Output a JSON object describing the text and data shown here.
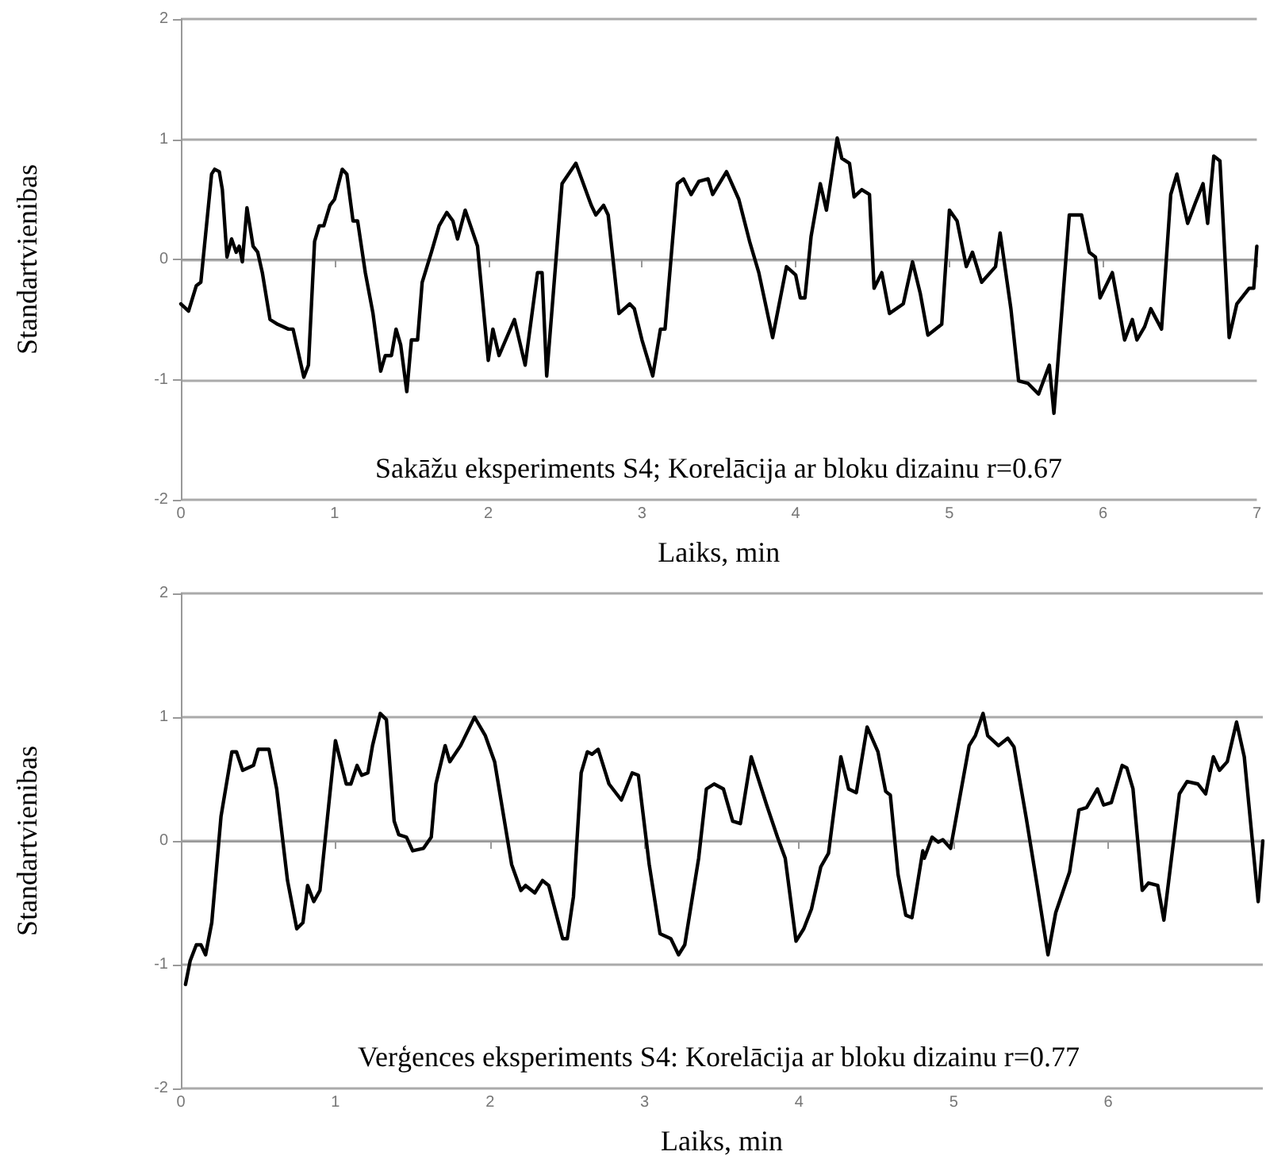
{
  "chart_data": [
    {
      "type": "line",
      "xlabel": "Laiks, min",
      "ylabel": "Standartvienibas",
      "annotations": [
        "Sakāžu eksperiments S4; Korelācija ar bloku dizainu r=0.67"
      ],
      "xlim": [
        0,
        7
      ],
      "xticks": [
        0,
        1,
        2,
        3,
        4,
        5,
        6,
        7
      ],
      "ylim": [
        -2,
        2
      ],
      "yticks": [
        -2,
        -1,
        0,
        1,
        2
      ],
      "grid": "y",
      "line_style": "solid",
      "color": "#000000",
      "x": [
        0,
        0.05,
        0.1,
        0.13,
        0.2,
        0.22,
        0.25,
        0.27,
        0.3,
        0.33,
        0.36,
        0.38,
        0.4,
        0.43,
        0.47,
        0.5,
        0.53,
        0.58,
        0.63,
        0.7,
        0.73,
        0.8,
        0.83,
        0.87,
        0.9,
        0.93,
        0.97,
        1.0,
        1.05,
        1.08,
        1.12,
        1.15,
        1.2,
        1.25,
        1.3,
        1.33,
        1.37,
        1.4,
        1.43,
        1.47,
        1.5,
        1.54,
        1.57,
        1.63,
        1.68,
        1.73,
        1.77,
        1.8,
        1.85,
        1.93,
        2.0,
        2.03,
        2.07,
        2.17,
        2.24,
        2.32,
        2.35,
        2.38,
        2.48,
        2.57,
        2.67,
        2.7,
        2.75,
        2.78,
        2.85,
        2.92,
        2.95,
        3.0,
        3.07,
        3.12,
        3.15,
        3.23,
        3.27,
        3.32,
        3.37,
        3.43,
        3.46,
        3.55,
        3.63,
        3.7,
        3.76,
        3.85,
        3.94,
        4.0,
        4.03,
        4.06,
        4.1,
        4.16,
        4.2,
        4.27,
        4.3,
        4.35,
        4.38,
        4.43,
        4.48,
        4.51,
        4.56,
        4.61,
        4.7,
        4.76,
        4.81,
        4.86,
        4.95,
        5.0,
        5.05,
        5.11,
        5.15,
        5.21,
        5.3,
        5.33,
        5.4,
        5.45,
        5.51,
        5.58,
        5.65,
        5.68,
        5.78,
        5.86,
        5.91,
        5.95,
        5.98,
        6.06,
        6.14,
        6.19,
        6.22,
        6.27,
        6.31,
        6.38,
        6.44,
        6.48,
        6.55,
        6.6,
        6.65,
        6.68,
        6.72,
        6.76,
        6.82,
        6.87,
        6.95,
        6.98,
        7.0
      ],
      "values": [
        -0.37,
        -0.43,
        -0.22,
        -0.19,
        0.71,
        0.75,
        0.73,
        0.58,
        0.02,
        0.17,
        0.06,
        0.11,
        -0.02,
        0.43,
        0.11,
        0.06,
        -0.11,
        -0.5,
        -0.54,
        -0.58,
        -0.58,
        -0.98,
        -0.88,
        0.15,
        0.28,
        0.28,
        0.45,
        0.5,
        0.75,
        0.71,
        0.32,
        0.32,
        -0.11,
        -0.45,
        -0.93,
        -0.8,
        -0.8,
        -0.58,
        -0.71,
        -1.1,
        -0.67,
        -0.67,
        -0.19,
        0.06,
        0.28,
        0.39,
        0.32,
        0.17,
        0.41,
        0.11,
        -0.84,
        -0.58,
        -0.8,
        -0.5,
        -0.88,
        -0.11,
        -0.11,
        -0.97,
        0.63,
        0.8,
        0.45,
        0.37,
        0.45,
        0.37,
        -0.45,
        -0.37,
        -0.41,
        -0.67,
        -0.97,
        -0.58,
        -0.58,
        0.63,
        0.67,
        0.54,
        0.65,
        0.67,
        0.54,
        0.73,
        0.5,
        0.15,
        -0.11,
        -0.65,
        -0.06,
        -0.13,
        -0.32,
        -0.32,
        0.19,
        0.63,
        0.41,
        1.01,
        0.84,
        0.8,
        0.52,
        0.58,
        0.54,
        -0.24,
        -0.11,
        -0.45,
        -0.37,
        -0.02,
        -0.28,
        -0.63,
        -0.54,
        0.41,
        0.32,
        -0.06,
        0.06,
        -0.19,
        -0.06,
        0.22,
        -0.41,
        -1.01,
        -1.03,
        -1.12,
        -0.88,
        -1.28,
        0.37,
        0.37,
        0.06,
        0.02,
        -0.32,
        -0.11,
        -0.67,
        -0.5,
        -0.67,
        -0.56,
        -0.41,
        -0.58,
        0.54,
        0.71,
        0.3,
        0.47,
        0.63,
        0.3,
        0.86,
        0.82,
        -0.65,
        -0.37,
        -0.24,
        -0.24,
        0.11
      ]
    },
    {
      "type": "line",
      "xlabel": "Laiks, min",
      "ylabel": "Standartvienibas",
      "annotations": [
        "Verģences eksperiments S4: Korelācija ar bloku dizainu r=0.77"
      ],
      "xlim": [
        0,
        7
      ],
      "xticks": [
        0,
        1,
        2,
        3,
        4,
        5,
        6
      ],
      "ylim": [
        -2,
        2
      ],
      "yticks": [
        -2,
        -1,
        0,
        1,
        2
      ],
      "grid": "y",
      "line_style": "solid",
      "color": "#000000",
      "x": [
        0.03,
        0.06,
        0.1,
        0.13,
        0.16,
        0.2,
        0.26,
        0.33,
        0.36,
        0.4,
        0.47,
        0.5,
        0.57,
        0.62,
        0.69,
        0.75,
        0.79,
        0.82,
        0.86,
        0.9,
        0.96,
        1.0,
        1.07,
        1.1,
        1.14,
        1.17,
        1.21,
        1.24,
        1.29,
        1.33,
        1.38,
        1.41,
        1.46,
        1.5,
        1.57,
        1.62,
        1.65,
        1.71,
        1.74,
        1.81,
        1.9,
        1.97,
        2.03,
        2.14,
        2.2,
        2.23,
        2.29,
        2.34,
        2.38,
        2.47,
        2.5,
        2.54,
        2.59,
        2.63,
        2.66,
        2.7,
        2.77,
        2.85,
        2.92,
        2.96,
        3.03,
        3.1,
        3.17,
        3.22,
        3.26,
        3.35,
        3.4,
        3.45,
        3.51,
        3.57,
        3.62,
        3.69,
        3.79,
        3.86,
        3.91,
        3.98,
        4.03,
        4.08,
        4.14,
        4.19,
        4.27,
        4.32,
        4.37,
        4.44,
        4.51,
        4.56,
        4.59,
        4.64,
        4.69,
        4.73,
        4.8,
        4.81,
        4.86,
        4.9,
        4.93,
        4.98,
        5.1,
        5.14,
        5.19,
        5.22,
        5.29,
        5.35,
        5.39,
        5.47,
        5.54,
        5.61,
        5.66,
        5.75,
        5.81,
        5.86,
        5.93,
        5.97,
        6.02,
        6.09,
        6.12,
        6.16,
        6.22,
        6.26,
        6.32,
        6.36,
        6.46,
        6.51,
        6.58,
        6.63,
        6.68,
        6.72,
        6.77,
        6.83,
        6.88,
        6.97,
        7.0
      ],
      "values": [
        -1.16,
        -0.97,
        -0.84,
        -0.84,
        -0.92,
        -0.66,
        0.2,
        0.72,
        0.72,
        0.57,
        0.61,
        0.74,
        0.74,
        0.42,
        -0.32,
        -0.71,
        -0.66,
        -0.36,
        -0.49,
        -0.4,
        0.33,
        0.81,
        0.46,
        0.46,
        0.61,
        0.53,
        0.55,
        0.77,
        1.03,
        0.98,
        0.16,
        0.05,
        0.03,
        -0.08,
        -0.06,
        0.03,
        0.46,
        0.77,
        0.64,
        0.77,
        1.0,
        0.85,
        0.64,
        -0.19,
        -0.4,
        -0.36,
        -0.42,
        -0.32,
        -0.36,
        -0.79,
        -0.79,
        -0.45,
        0.55,
        0.72,
        0.7,
        0.74,
        0.46,
        0.33,
        0.55,
        0.53,
        -0.19,
        -0.75,
        -0.79,
        -0.92,
        -0.84,
        -0.14,
        0.42,
        0.46,
        0.42,
        0.16,
        0.14,
        0.68,
        0.29,
        0.03,
        -0.14,
        -0.81,
        -0.71,
        -0.55,
        -0.21,
        -0.1,
        0.68,
        0.42,
        0.39,
        0.92,
        0.72,
        0.4,
        0.37,
        -0.27,
        -0.6,
        -0.62,
        -0.08,
        -0.14,
        0.03,
        -0.01,
        0.01,
        -0.06,
        0.77,
        0.85,
        1.03,
        0.85,
        0.77,
        0.83,
        0.76,
        0.18,
        -0.36,
        -0.92,
        -0.58,
        -0.25,
        0.25,
        0.27,
        0.42,
        0.29,
        0.31,
        0.61,
        0.59,
        0.42,
        -0.4,
        -0.34,
        -0.36,
        -0.64,
        0.38,
        0.48,
        0.46,
        0.38,
        0.68,
        0.57,
        0.64,
        0.96,
        0.68,
        -0.49,
        0
      ]
    }
  ]
}
